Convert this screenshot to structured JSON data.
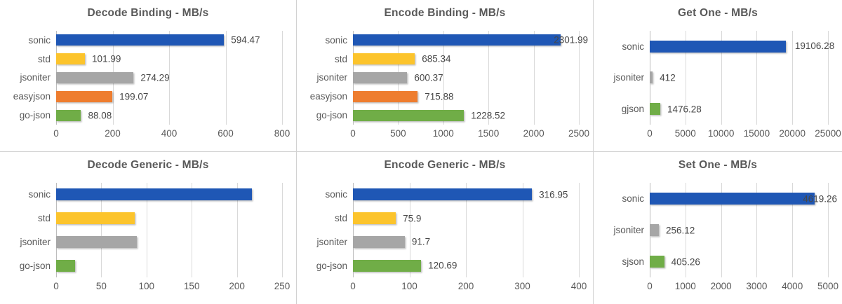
{
  "colors": {
    "sonic_blue": "#1f57b5",
    "std_yellow": "#fcc42c",
    "jsoniter_gray": "#a6a6a6",
    "easyjson_orange": "#ee7d2f",
    "green": "#70ad47",
    "gridline": "#d9d9d9",
    "axis_line": "#bdbdbd",
    "title_text": "#595959",
    "axis_text": "#595959",
    "value_text": "#474747",
    "panel_border": "#d2d2d2",
    "background": "#ffffff"
  },
  "chart_data": [
    {
      "type": "bar",
      "orientation": "horizontal",
      "title": "Decode Binding - MB/s",
      "xlabel": "",
      "ylabel": "",
      "categories": [
        "sonic",
        "std",
        "jsoniter",
        "easyjson",
        "go-json"
      ],
      "values": [
        594.47,
        101.99,
        274.29,
        199.07,
        88.08
      ],
      "data_labels": [
        "594.47",
        "101.99",
        "274.29",
        "199.07",
        "88.08"
      ],
      "label_modes": [
        "normal",
        "normal",
        "normal",
        "normal",
        "normal"
      ],
      "bar_colors": [
        "#1f57b5",
        "#fcc42c",
        "#a6a6a6",
        "#ee7d2f",
        "#70ad47"
      ],
      "xlim": [
        0,
        800
      ],
      "ticks": [
        0,
        200,
        400,
        600,
        800
      ],
      "grid": true,
      "legend": false
    },
    {
      "type": "bar",
      "orientation": "horizontal",
      "title": "Encode Binding - MB/s",
      "xlabel": "",
      "ylabel": "",
      "categories": [
        "sonic",
        "std",
        "jsoniter",
        "easyjson",
        "go-json"
      ],
      "values": [
        2301.99,
        685.34,
        600.37,
        715.88,
        1228.52
      ],
      "data_labels": [
        "2301.99",
        "685.34",
        "600.37",
        "715.88",
        "1228.52"
      ],
      "label_modes": [
        "overlap",
        "normal",
        "normal",
        "normal",
        "normal"
      ],
      "bar_colors": [
        "#1f57b5",
        "#fcc42c",
        "#a6a6a6",
        "#ee7d2f",
        "#70ad47"
      ],
      "xlim": [
        0,
        2500
      ],
      "ticks": [
        0,
        500,
        1000,
        1500,
        2000,
        2500
      ],
      "grid": true,
      "legend": false
    },
    {
      "type": "bar",
      "orientation": "horizontal",
      "title": "Get One - MB/s",
      "xlabel": "",
      "ylabel": "",
      "categories": [
        "sonic",
        "jsoniter",
        "gjson"
      ],
      "values": [
        19106.28,
        412,
        1476.28
      ],
      "data_labels": [
        "19106.28",
        "412",
        "1476.28"
      ],
      "label_modes": [
        "wrap",
        "normal",
        "normal"
      ],
      "bar_colors": [
        "#1f57b5",
        "#a6a6a6",
        "#70ad47"
      ],
      "xlim": [
        0,
        25000
      ],
      "ticks": [
        0,
        5000,
        10000,
        15000,
        20000,
        25000
      ],
      "grid": true,
      "legend": false
    },
    {
      "type": "bar",
      "orientation": "horizontal",
      "title": "Decode Generic - MB/s",
      "xlabel": "",
      "ylabel": "",
      "categories": [
        "sonic",
        "std",
        "jsoniter",
        "go-json"
      ],
      "values": [
        217,
        87,
        89,
        21
      ],
      "values_estimated": true,
      "data_labels": null,
      "bar_colors": [
        "#1f57b5",
        "#fcc42c",
        "#a6a6a6",
        "#70ad47"
      ],
      "xlim": [
        0,
        250
      ],
      "ticks": [
        0,
        50,
        100,
        150,
        200,
        250
      ],
      "grid": true,
      "legend": false
    },
    {
      "type": "bar",
      "orientation": "horizontal",
      "title": "Encode Generic - MB/s",
      "xlabel": "",
      "ylabel": "",
      "categories": [
        "sonic",
        "std",
        "jsoniter",
        "go-json"
      ],
      "values": [
        316.95,
        75.9,
        91.7,
        120.69
      ],
      "data_labels": [
        "316.95",
        "75.9",
        "91.7",
        "120.69"
      ],
      "label_modes": [
        "normal",
        "normal",
        "normal",
        "normal"
      ],
      "bar_colors": [
        "#1f57b5",
        "#fcc42c",
        "#a6a6a6",
        "#70ad47"
      ],
      "xlim": [
        0,
        400
      ],
      "ticks": [
        0,
        100,
        200,
        300,
        400
      ],
      "grid": true,
      "legend": false
    },
    {
      "type": "bar",
      "orientation": "horizontal",
      "title": "Set One - MB/s",
      "xlabel": "",
      "ylabel": "",
      "categories": [
        "sonic",
        "jsoniter",
        "sjson"
      ],
      "values": [
        4619.26,
        256.12,
        405.26
      ],
      "data_labels": [
        "4619.26",
        "256.12",
        "405.26"
      ],
      "label_modes": [
        "overlap",
        "normal",
        "normal"
      ],
      "bar_colors": [
        "#1f57b5",
        "#a6a6a6",
        "#70ad47"
      ],
      "xlim": [
        0,
        5000
      ],
      "ticks": [
        0,
        1000,
        2000,
        3000,
        4000,
        5000
      ],
      "grid": true,
      "legend": false
    }
  ]
}
